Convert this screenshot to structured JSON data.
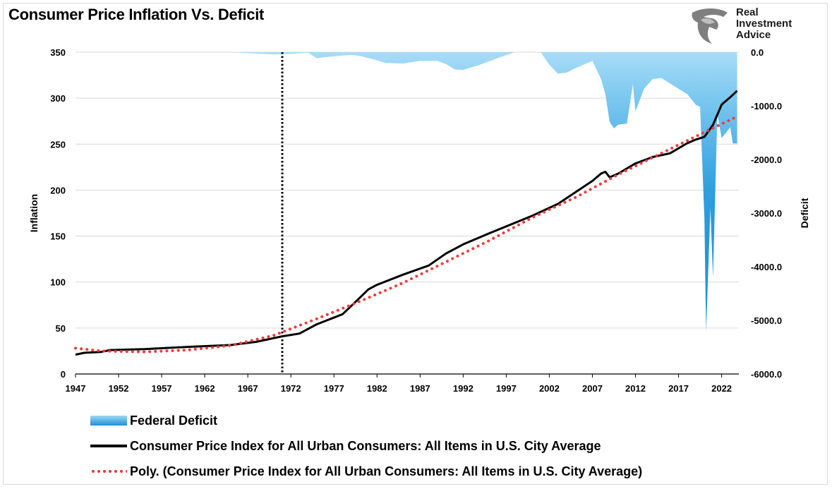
{
  "title": "Consumer Price Inflation Vs. Deficit",
  "logo": {
    "line1": "Real",
    "line2": "Investment",
    "line3": "Advice",
    "icon": "eagle-head-icon"
  },
  "colors": {
    "deficit_light": "#a8dcf7",
    "deficit_dark": "#1a8fd4",
    "cpi": "#000000",
    "poly": "#ef3b3b"
  },
  "legend": [
    {
      "label": "Federal Deficit",
      "style": "area"
    },
    {
      "label": "Consumer Price Index for All Urban Consumers: All Items in U.S. City Average",
      "style": "line"
    },
    {
      "label": "Poly. (Consumer Price Index for All Urban Consumers: All Items in U.S. City Average)",
      "style": "dots"
    }
  ],
  "chart_data": {
    "type": "line",
    "title": "Consumer Price Inflation Vs. Deficit",
    "xlabel": "",
    "ylabel": "Inflation",
    "y2label": "Deficit",
    "xlim": [
      1947,
      2024
    ],
    "xticks": [
      "1947",
      "1952",
      "1957",
      "1962",
      "1967",
      "1972",
      "1977",
      "1982",
      "1987",
      "1992",
      "1997",
      "2002",
      "2007",
      "2012",
      "2017",
      "2022"
    ],
    "ylim": [
      0,
      350
    ],
    "yticks": [
      "0",
      "50",
      "100",
      "150",
      "200",
      "250",
      "300",
      "350"
    ],
    "y2lim": [
      -6000,
      0
    ],
    "y2ticks": [
      "0.0",
      "-1000.0",
      "-2000.0",
      "-3000.0",
      "-4000.0",
      "-5000.0",
      "-6000.0"
    ],
    "vertical_marker_x": 1971,
    "grid": true,
    "legend_position": "bottom-left",
    "series": [
      {
        "name": "Consumer Price Index for All Urban Consumers: All Items in U.S. City Average",
        "axis": "left",
        "style": "line",
        "x": [
          1947,
          1948,
          1950,
          1951,
          1955,
          1957,
          1960,
          1965,
          1968,
          1970,
          1971,
          1973,
          1975,
          1978,
          1980,
          1981,
          1982,
          1985,
          1988,
          1990,
          1992,
          1995,
          2000,
          2003,
          2007,
          2008,
          2008.5,
          2009,
          2010,
          2012,
          2014,
          2016,
          2018,
          2019,
          2020,
          2021,
          2022,
          2023,
          2023.8
        ],
        "y": [
          21,
          23,
          24,
          26,
          27,
          28,
          29.5,
          31.5,
          35,
          39,
          41,
          44,
          54,
          65,
          83,
          92,
          97,
          108,
          118,
          131,
          141,
          153,
          172,
          185,
          210,
          218,
          220,
          214,
          218,
          229,
          236,
          240,
          251,
          255,
          258,
          271,
          293,
          301,
          308
        ]
      },
      {
        "name": "Poly. (Consumer Price Index for All Urban Consumers: All Items in U.S. City Average)",
        "axis": "left",
        "style": "dots",
        "x": [
          1947,
          1950,
          1955,
          1960,
          1965,
          1970,
          1975,
          1980,
          1985,
          1990,
          1995,
          2000,
          2005,
          2010,
          2015,
          2020,
          2023.8
        ],
        "y": [
          28,
          25,
          24,
          26,
          31,
          42,
          60,
          79,
          99,
          122,
          145,
          170,
          192,
          217,
          240,
          263,
          280
        ]
      },
      {
        "name": "Federal Deficit",
        "axis": "right",
        "style": "area",
        "x": [
          1947,
          1965,
          1970,
          1971,
          1972,
          1974,
          1975,
          1977,
          1979,
          1980,
          1982,
          1983,
          1985,
          1987,
          1989,
          1990,
          1991,
          1992,
          1993,
          1994,
          1996,
          1998,
          1999,
          2000,
          2001,
          2002,
          2003,
          2004,
          2005,
          2006,
          2007,
          2008,
          2008.5,
          2009,
          2009.5,
          2010,
          2011,
          2011.7,
          2012,
          2013,
          2014,
          2015,
          2016,
          2017,
          2018,
          2019,
          2019.5,
          2020,
          2020.2,
          2020.7,
          2021,
          2021.5,
          2022,
          2023,
          2023.3,
          2023.8
        ],
        "y": [
          0,
          0,
          -40,
          -35,
          -30,
          -10,
          -110,
          -75,
          -50,
          -70,
          -150,
          -200,
          -210,
          -160,
          -160,
          -220,
          -320,
          -330,
          -280,
          -230,
          -110,
          0,
          0,
          0,
          0,
          -230,
          -400,
          -380,
          -300,
          -230,
          -160,
          -500,
          -780,
          -1300,
          -1420,
          -1350,
          -1330,
          -600,
          -1100,
          -680,
          -500,
          -480,
          -580,
          -680,
          -780,
          -980,
          -1020,
          -3100,
          -5200,
          -2900,
          -4200,
          -1150,
          -1600,
          -1400,
          -1700,
          -1700
        ]
      }
    ]
  }
}
